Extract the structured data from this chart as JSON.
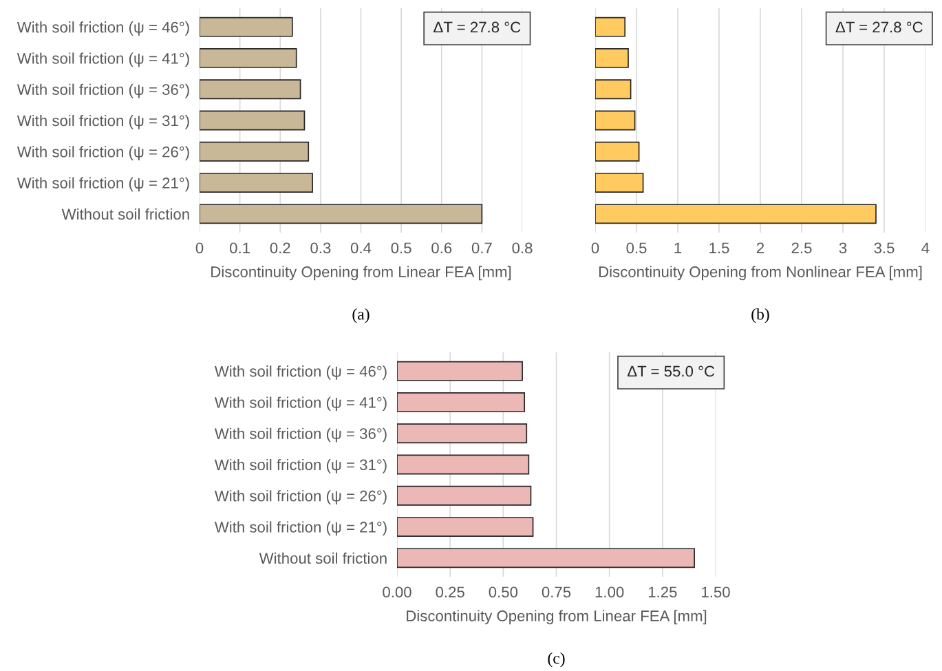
{
  "chart_data": [
    {
      "type": "bar",
      "orientation": "horizontal",
      "xlabel": "Discontinuity Opening from Linear FEA [mm]",
      "categories": [
        "With soil friction (ψ = 46°)",
        "With soil friction (ψ = 41°)",
        "With soil friction (ψ = 36°)",
        "With soil friction (ψ = 31°)",
        "With soil friction (ψ = 26°)",
        "With soil friction (ψ = 21°)",
        "Without soil friction"
      ],
      "values": [
        0.23,
        0.24,
        0.25,
        0.26,
        0.27,
        0.28,
        0.7
      ],
      "color": "#c8b898",
      "xlim": [
        0,
        0.8
      ],
      "xticks": [
        0,
        0.1,
        0.2,
        0.3,
        0.4,
        0.5,
        0.6,
        0.7,
        0.8
      ],
      "grid": "x",
      "annotations": [
        "ΔT = 27.8 °C",
        "(a)"
      ]
    },
    {
      "type": "bar",
      "orientation": "horizontal",
      "xlabel": "Discontinuity Opening from Nonlinear FEA [mm]",
      "categories": [
        null,
        null,
        null,
        null,
        null,
        null,
        null
      ],
      "values": [
        0.36,
        0.4,
        0.43,
        0.48,
        0.53,
        0.58,
        3.4
      ],
      "color": "#ffca5f",
      "xlim": [
        0,
        4
      ],
      "xticks": [
        0,
        0.5,
        1,
        1.5,
        2,
        2.5,
        3,
        3.5,
        4
      ],
      "grid": "x",
      "annotations": [
        "ΔT = 27.8 °C",
        "(b)"
      ]
    },
    {
      "type": "bar",
      "orientation": "horizontal",
      "xlabel": "Discontinuity Opening from Linear FEA [mm]",
      "categories": [
        "With soil friction (ψ = 46°)",
        "With soil friction (ψ = 41°)",
        "With soil friction (ψ = 36°)",
        "With soil friction (ψ = 31°)",
        "With soil friction (ψ = 26°)",
        "With soil friction (ψ = 21°)",
        "Without soil friction"
      ],
      "values": [
        0.59,
        0.6,
        0.61,
        0.62,
        0.63,
        0.64,
        1.4
      ],
      "color": "#ecb8b5",
      "xlim": [
        0,
        1.5
      ],
      "xticks": [
        {
          "value": 0,
          "label": "0.00"
        },
        {
          "value": 0.25,
          "label": "0.25"
        },
        {
          "value": 0.5,
          "label": "0.50"
        },
        {
          "value": 0.75,
          "label": "0.75"
        },
        {
          "value": 1,
          "label": "1.00"
        },
        {
          "value": 1.25,
          "label": "1.25"
        },
        {
          "value": 1.5,
          "label": "1.50"
        }
      ],
      "grid": "x",
      "annotations": [
        "ΔT = 55.0 °C",
        "(c)"
      ]
    }
  ]
}
